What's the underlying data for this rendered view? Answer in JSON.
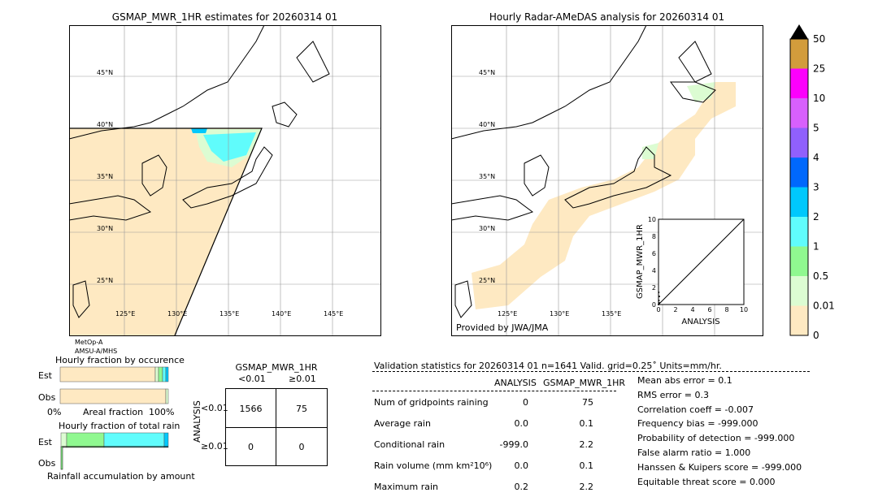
{
  "chart_data": [
    {
      "type": "heatmap",
      "title": "GSMAP_MWR_1HR estimates for 20260314 01",
      "lat_ticks": [
        "45°N",
        "40°N",
        "35°N",
        "30°N",
        "25°N"
      ],
      "lon_ticks": [
        "125°E",
        "130°E",
        "135°E",
        "140°E",
        "145°E"
      ],
      "satellite_label": [
        "MetOp-A",
        "AMSU-A/MHS"
      ]
    },
    {
      "type": "heatmap",
      "title": "Hourly Radar-AMeDAS analysis for 20260314 01",
      "lat_ticks": [
        "45°N",
        "40°N",
        "35°N",
        "30°N",
        "25°N"
      ],
      "lon_ticks": [
        "125°E",
        "130°E",
        "135°E"
      ],
      "credit": "Provided by JWA/JMA",
      "inset": {
        "type": "scatter",
        "xlabel": "ANALYSIS",
        "ylabel": "GSMAP_MWR_1HR",
        "xlim": [
          0,
          10
        ],
        "ylim": [
          0,
          10
        ],
        "ticks": [
          "0",
          "2",
          "4",
          "6",
          "8",
          "10"
        ]
      }
    },
    {
      "type": "colorbar",
      "levels": [
        "0",
        "0.01",
        "0.5",
        "1",
        "2",
        "3",
        "4",
        "5",
        "10",
        "25",
        "50"
      ],
      "colors": [
        "#fee9c2",
        "#dcfcd2",
        "#90f890",
        "#60fcfc",
        "#00c8fc",
        "#0068fc",
        "#9060fc",
        "#d860fc",
        "#fc00fc",
        "#d29c3c"
      ]
    },
    {
      "type": "bar",
      "title": "Hourly fraction by occurence",
      "categories": [
        "Est",
        "Obs"
      ],
      "xlabel": "Areal fraction",
      "xticks": [
        "0%",
        "100%"
      ],
      "series": [
        {
          "values_est": [
            0.88,
            0.02,
            0.02,
            0.02,
            0.01
          ],
          "values_obs": [
            0.98,
            0.01
          ]
        }
      ]
    },
    {
      "type": "bar",
      "title": "Hourly fraction of total rain",
      "categories": [
        "Est",
        "Obs"
      ],
      "xlabel": "Rainfall accumulation by amount",
      "series": [
        {
          "values_est": [
            0.05,
            0.35,
            0.57,
            0.03
          ],
          "values_obs": [
            0.01
          ]
        }
      ]
    },
    {
      "type": "table",
      "title": "GSMAP_MWR_1HR",
      "col_headers": [
        "<0.01",
        "≥0.01"
      ],
      "row_label": "ANALYSIS",
      "row_headers": [
        "<0.01",
        "≥0.01"
      ],
      "cells": [
        [
          "1566",
          "75"
        ],
        [
          "0",
          "0"
        ]
      ]
    }
  ],
  "stats": {
    "title": "Validation statistics for 20260314 01  n=1641 Valid. grid=0.25˚ Units=mm/hr.",
    "col_headers": [
      "ANALYSIS",
      "GSMAP_MWR_1HR"
    ],
    "rows": [
      {
        "label": "Num of gridpoints raining",
        "a": "0",
        "g": "75"
      },
      {
        "label": "Average rain",
        "a": "0.0",
        "g": "0.1"
      },
      {
        "label": "Conditional rain",
        "a": "-999.0",
        "g": "2.2"
      },
      {
        "label": "Rain volume (mm km²10⁶)",
        "a": "0.0",
        "g": "0.1"
      },
      {
        "label": "Maximum rain",
        "a": "0.2",
        "g": "2.2"
      }
    ],
    "scores": [
      "Mean abs error =    0.1",
      "RMS error =    0.3",
      "Correlation coeff = -0.007",
      "Frequency bias = -999.000",
      "Probability of detection = -999.000",
      "False alarm ratio =  1.000",
      "Hanssen & Kuipers score = -999.000",
      "Equitable threat score =  0.000"
    ]
  }
}
